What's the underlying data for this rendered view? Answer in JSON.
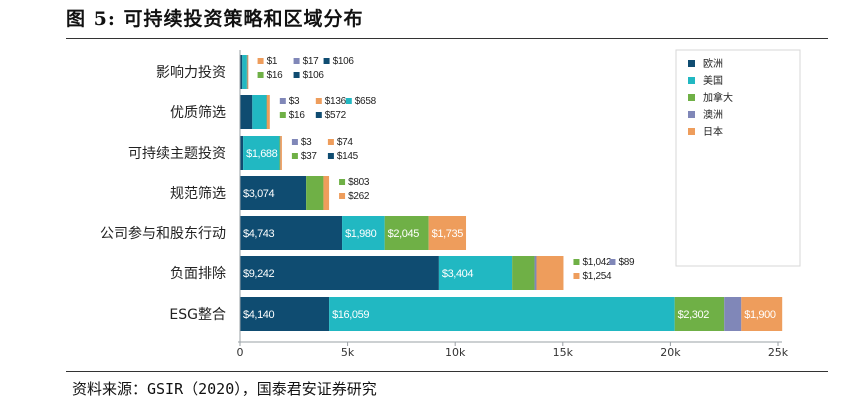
{
  "figure_title": "图 5:  可持续投资策略和区域分布",
  "source": "资料来源：GSIR（2020），国泰君安证券研究",
  "chart_data": {
    "type": "bar",
    "orientation": "horizontal",
    "stacked": true,
    "title": "可持续投资策略和区域分布",
    "xlabel": "",
    "ylabel": "",
    "xlim": [
      0,
      25000
    ],
    "ticks": [
      0,
      5000,
      10000,
      15000,
      20000,
      25000
    ],
    "tick_labels": [
      "0",
      "5k",
      "10k",
      "15k",
      "20k",
      "25k"
    ],
    "grid": false,
    "legend_position": "top-right",
    "categories": [
      "影响力投资",
      "优质筛选",
      "可持续主题投资",
      "规范筛选",
      "公司参与和股东行动",
      "负面排除",
      "ESG整合"
    ],
    "series": [
      {
        "name": "欧洲",
        "color": "#0f4c71",
        "values": [
          106,
          572,
          145,
          3074,
          4743,
          9242,
          4140
        ],
        "labels": [
          "$106",
          "$572",
          "$145",
          "$3,074",
          "$4,743",
          "$9,242",
          "$4,140"
        ]
      },
      {
        "name": "美国",
        "color": "#21b8c2",
        "values": [
          212,
          658,
          1688,
          0,
          1980,
          3404,
          16059
        ],
        "labels": [
          "$212",
          "$658",
          "$1,688",
          "",
          "$1,980",
          "$3,404",
          "$16,059"
        ]
      },
      {
        "name": "加拿大",
        "color": "#6fb046",
        "values": [
          16,
          16,
          37,
          803,
          2045,
          1042,
          2302
        ],
        "labels": [
          "$16",
          "$16",
          "$37",
          "$803",
          "$2,045",
          "$1,042",
          "$2,302"
        ]
      },
      {
        "name": "澳洲",
        "color": "#8087b8",
        "values": [
          17,
          3,
          3,
          0,
          0,
          89,
          794
        ],
        "labels": [
          "$17",
          "$3",
          "$3",
          "",
          "",
          "$89",
          "$794"
        ]
      },
      {
        "name": "日本",
        "color": "#ee9d5c",
        "values": [
          1,
          136,
          74,
          262,
          1735,
          1254,
          1900
        ],
        "labels": [
          "$1",
          "$136",
          "$74",
          "$262",
          "$1,735",
          "$1,254",
          "$1,900"
        ]
      }
    ]
  }
}
